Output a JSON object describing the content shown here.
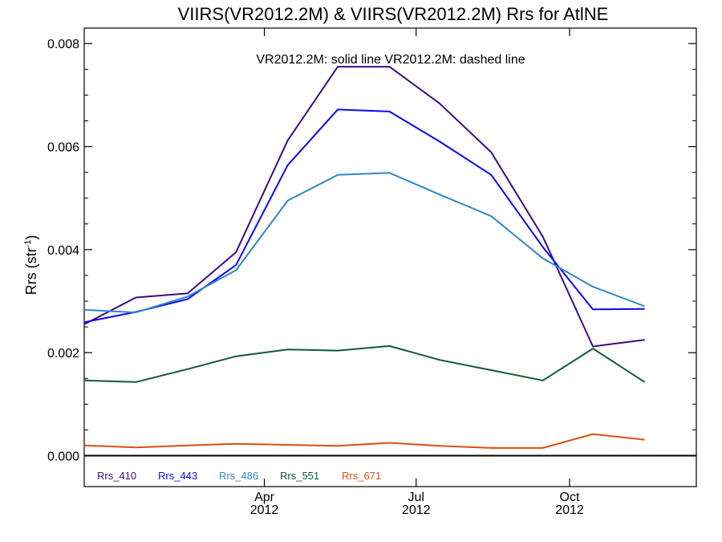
{
  "chart_data": {
    "type": "line",
    "title": "VIIRS(VR2012.2M) & VIIRS(VR2012.2M)  Rrs for AtlNE",
    "annotation": "VR2012.2M: solid line   VR2012.2M: dashed line",
    "ylabel": "Rrs (str",
    "ylabel_sup": "-1",
    "ylabel_close": ")",
    "ylim": [
      -0.0006,
      0.0083
    ],
    "yticks": [
      0.0,
      0.002,
      0.004,
      0.006,
      0.008
    ],
    "ytick_labels": [
      "0.000",
      "0.002",
      "0.004",
      "0.006",
      "0.008"
    ],
    "xlim": [
      "2011-12-15",
      "2012-12-16"
    ],
    "xticks": [
      {
        "date": "2012-04-01",
        "month": "Apr",
        "year": "2012"
      },
      {
        "date": "2012-07-01",
        "month": "Jul",
        "year": "2012"
      },
      {
        "date": "2012-10-01",
        "month": "Oct",
        "year": "2012"
      }
    ],
    "x": [
      "2011-12-15",
      "2012-01-15",
      "2012-02-15",
      "2012-03-15",
      "2012-04-15",
      "2012-05-15",
      "2012-06-15",
      "2012-07-15",
      "2012-08-15",
      "2012-09-15",
      "2012-10-15",
      "2012-11-15",
      "2012-12-16"
    ],
    "series": [
      {
        "name": "Rrs_410",
        "color": "#3a0d7e",
        "values": [
          0.00255,
          0.00307,
          0.00315,
          0.00395,
          0.00612,
          0.00755,
          0.00755,
          0.00684,
          0.00589,
          0.00425,
          0.00212,
          0.00225,
          null
        ]
      },
      {
        "name": "Rrs_443",
        "color": "#0a0aef",
        "values": [
          0.00259,
          0.00279,
          0.00304,
          0.0037,
          0.00564,
          0.00672,
          0.00668,
          0.0061,
          0.00545,
          0.00405,
          0.00284,
          0.00285,
          null
        ]
      },
      {
        "name": "Rrs_486",
        "color": "#2e87c6",
        "values": [
          0.00283,
          0.00278,
          0.00309,
          0.0036,
          0.00495,
          0.00545,
          0.00549,
          0.00507,
          0.00465,
          0.00383,
          0.00328,
          0.0029,
          null
        ]
      },
      {
        "name": "Rrs_551",
        "color": "#0c5c34",
        "values": [
          0.00146,
          0.00143,
          0.00168,
          0.00193,
          0.00206,
          0.00204,
          0.00213,
          0.00186,
          0.00166,
          0.00146,
          0.00208,
          0.00143,
          null
        ]
      },
      {
        "name": "Rrs_671",
        "color": "#d94f12",
        "values": [
          0.0002,
          0.00016,
          0.0002,
          0.00023,
          0.00021,
          0.00019,
          0.00025,
          0.00019,
          0.00015,
          0.00015,
          0.00042,
          0.00031,
          null
        ]
      }
    ],
    "zero_line": true,
    "grid": false,
    "legend_position": "bottom-left"
  }
}
